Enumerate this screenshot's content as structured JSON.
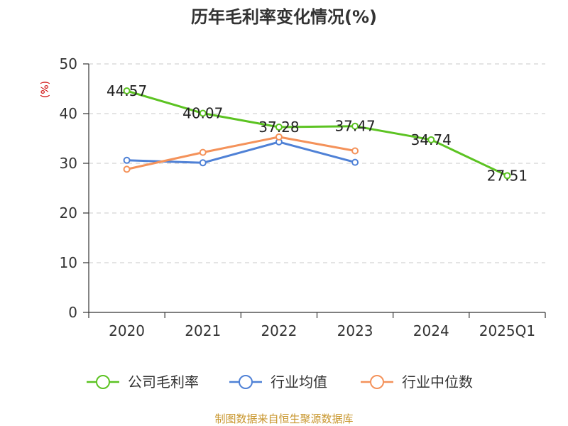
{
  "chart_data": {
    "type": "line",
    "title": "历年毛利率变化情况(%)",
    "ylabel": "(%)",
    "categories": [
      "2020",
      "2021",
      "2022",
      "2023",
      "2024",
      "2025Q1"
    ],
    "ylim": [
      0,
      50
    ],
    "yticks": [
      0,
      10,
      20,
      30,
      40,
      50
    ],
    "grid": true,
    "legend_position": "bottom",
    "series": [
      {
        "name": "公司毛利率",
        "color": "#5cc322",
        "values": [
          44.57,
          40.07,
          37.28,
          37.47,
          34.74,
          27.51
        ],
        "labels": [
          "44.57",
          "40.07",
          "37.28",
          "37.47",
          "34.74",
          "27.51"
        ]
      },
      {
        "name": "行业均值",
        "color": "#4f81d6",
        "values": [
          30.6,
          30.1,
          34.3,
          30.2,
          null,
          null
        ]
      },
      {
        "name": "行业中位数",
        "color": "#f4925a",
        "values": [
          28.8,
          32.2,
          35.3,
          32.5,
          null,
          null
        ]
      }
    ],
    "source": "制图数据来自恒生聚源数据库"
  }
}
